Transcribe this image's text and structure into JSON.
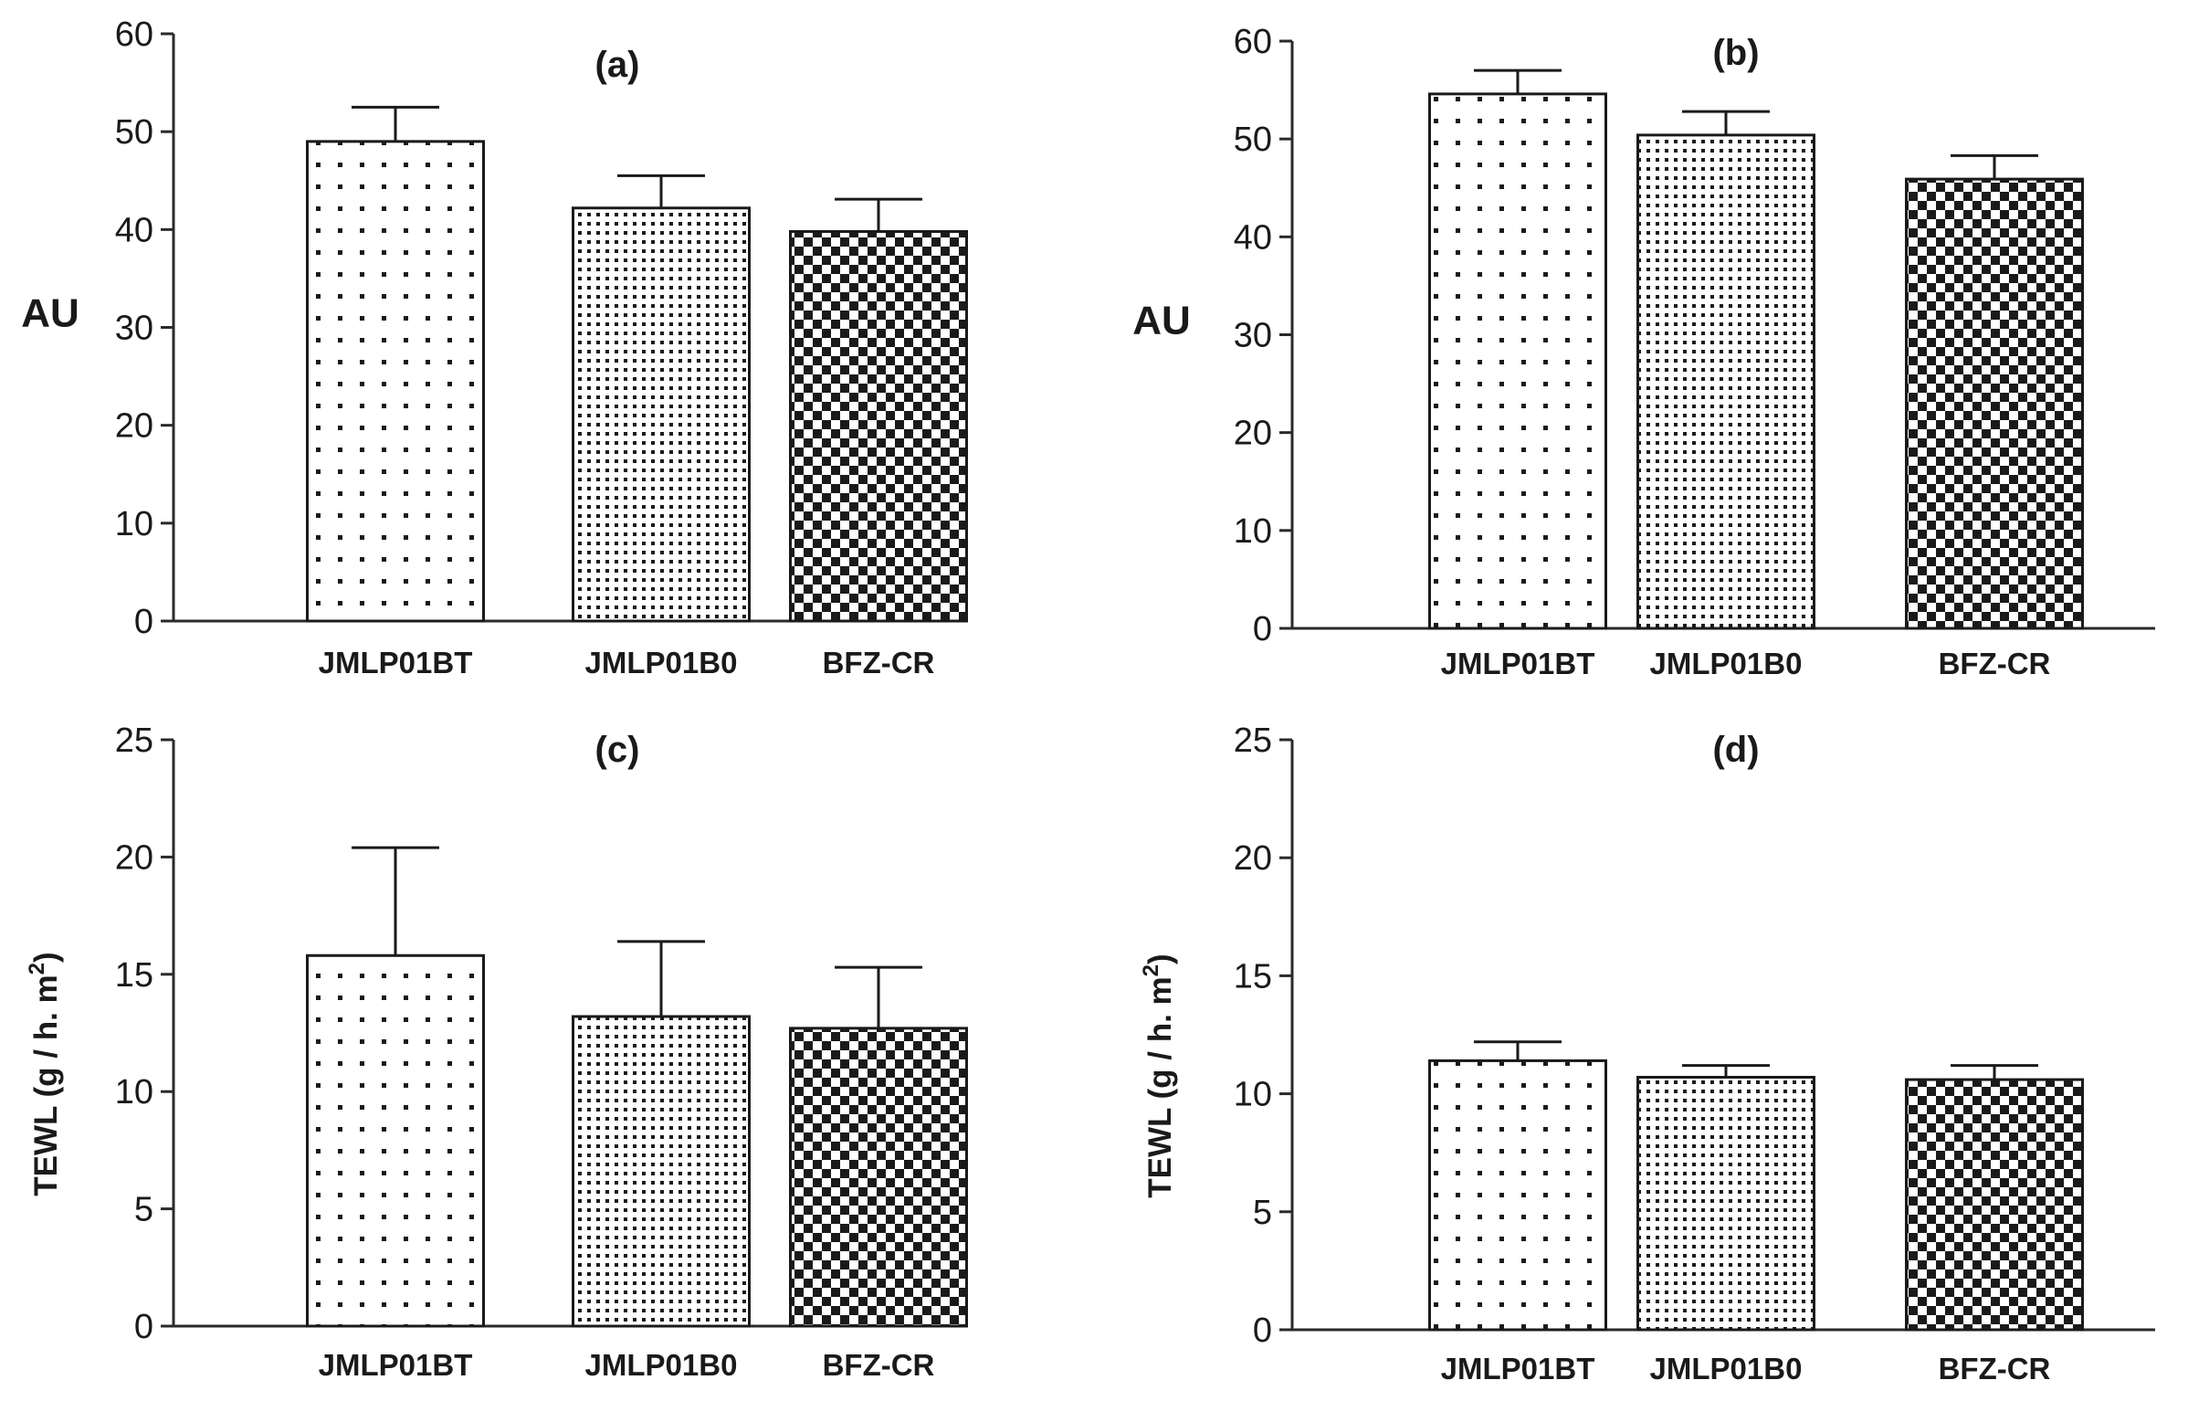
{
  "chart_data": [
    {
      "id": "a",
      "type": "bar",
      "title": "(a)",
      "ylabel": "AU",
      "ylabel_sup": "",
      "ylabel_end": "",
      "xlabel": "",
      "categories": [
        "JMLP01BT",
        "JMLP01B0",
        "BFZ-CR"
      ],
      "values": [
        49,
        42.2,
        39.8
      ],
      "errors": [
        3.5,
        3.3,
        3.3
      ],
      "ylim": [
        0,
        60
      ],
      "yticks": [
        0,
        10,
        20,
        30,
        40,
        50,
        60
      ],
      "patterns": [
        "sparse-dots",
        "fine-dots",
        "checker"
      ]
    },
    {
      "id": "b",
      "type": "bar",
      "title": "(b)",
      "ylabel": "AU",
      "ylabel_sup": "",
      "ylabel_end": "",
      "xlabel": "",
      "categories": [
        "JMLP01BT",
        "JMLP01B0",
        "BFZ-CR"
      ],
      "values": [
        54.6,
        50.4,
        45.9
      ],
      "errors": [
        2.4,
        2.4,
        2.4
      ],
      "ylim": [
        0,
        60
      ],
      "yticks": [
        0,
        10,
        20,
        30,
        40,
        50,
        60
      ],
      "patterns": [
        "sparse-dots",
        "fine-dots",
        "checker"
      ]
    },
    {
      "id": "c",
      "type": "bar",
      "title": "(c)",
      "ylabel": "TEWL (g / h. m",
      "ylabel_sup": "2",
      "ylabel_end": ")",
      "xlabel": "",
      "categories": [
        "JMLP01BT",
        "JMLP01B0",
        "BFZ-CR"
      ],
      "values": [
        15.8,
        13.2,
        12.7
      ],
      "errors": [
        4.6,
        3.2,
        2.6
      ],
      "ylim": [
        0,
        25
      ],
      "yticks": [
        0,
        5,
        10,
        15,
        20,
        25
      ],
      "patterns": [
        "sparse-dots",
        "fine-dots",
        "checker"
      ]
    },
    {
      "id": "d",
      "type": "bar",
      "title": "(d)",
      "ylabel": "TEWL (g / h. m",
      "ylabel_sup": "2",
      "ylabel_end": ")",
      "xlabel": "",
      "categories": [
        "JMLP01BT",
        "JMLP01B0",
        "BFZ-CR"
      ],
      "values": [
        11.4,
        10.7,
        10.6
      ],
      "errors": [
        0.8,
        0.5,
        0.6
      ],
      "ylim": [
        0,
        25
      ],
      "yticks": [
        0,
        5,
        10,
        15,
        20,
        25
      ],
      "patterns": [
        "sparse-dots",
        "fine-dots",
        "checker"
      ]
    }
  ]
}
